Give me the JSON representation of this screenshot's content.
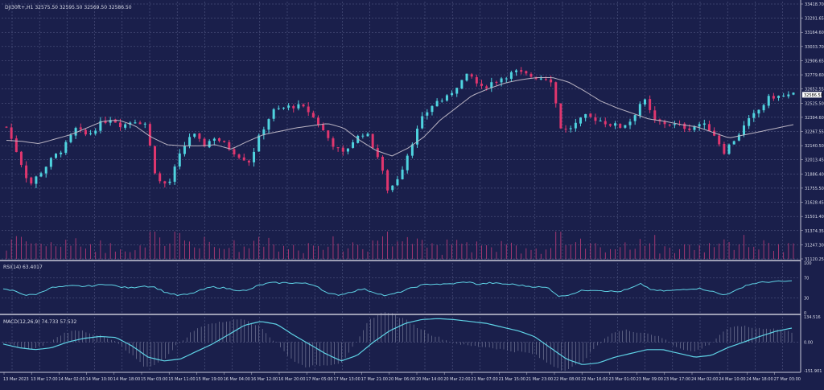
{
  "colors": {
    "background": "#1a1f4b",
    "grid": "#7a80aa",
    "up_candle": "#4fd3df",
    "down_candle": "#e0366e",
    "moving_average": "#b9b3c2",
    "volume": "#c23d7b",
    "rsi_line": "#5fd3e6",
    "macd_line": "#5fd3e6",
    "macd_histogram": "#9a9fb8",
    "text": "#d9dbe8",
    "separator": "#c8c8d8",
    "price_marker_bg": "#ffffff"
  },
  "main_panel": {
    "header": "DJI30ft+,H1  32575.50 32595.50 32569.50 32586.50",
    "price_ticks": [
      "33418.70",
      "33291.65",
      "33164.60",
      "33033.70",
      "32906.65",
      "32779.60",
      "32652.55",
      "32525.50",
      "32394.60",
      "32267.55",
      "32140.50",
      "32013.45",
      "31886.40",
      "31755.50",
      "31628.45",
      "31501.40",
      "31374.35",
      "31247.30",
      "31120.25"
    ],
    "current_price_label": "32586.50"
  },
  "rsi_panel": {
    "header": "RSI(14) 63.4017",
    "ticks": [
      "100",
      "70",
      "30",
      "0"
    ]
  },
  "macd_panel": {
    "header": "MACD(12,26,9) 74.733 57.532",
    "ticks": [
      "134.516",
      "0.00",
      "-151.901"
    ]
  },
  "time_axis": [
    "13 Mar 2023",
    "13 Mar 17:00",
    "14 Mar 02:00",
    "14 Mar 10:00",
    "14 Mar 18:00",
    "15 Mar 03:00",
    "15 Mar 11:00",
    "15 Mar 19:00",
    "16 Mar 04:00",
    "16 Mar 12:00",
    "16 Mar 20:00",
    "17 Mar 05:00",
    "17 Mar 13:00",
    "17 Mar 21:00",
    "20 Mar 06:00",
    "20 Mar 14:00",
    "20 Mar 22:00",
    "21 Mar 07:00",
    "21 Mar 15:00",
    "21 Mar 23:00",
    "22 Mar 08:00",
    "22 Mar 16:00",
    "23 Mar 01:00",
    "23 Mar 09:00",
    "23 Mar 17:00",
    "24 Mar 02:00",
    "24 Mar 10:00",
    "24 Mar 18:00",
    "27 Mar 03:00"
  ],
  "chart_data": [
    {
      "type": "candlestick",
      "title": "DJI30ft+,H1",
      "series": [
        {
          "name": "price",
          "close_anchors": [
            32300,
            32050,
            31780,
            31900,
            32020,
            32120,
            32280,
            32220,
            32320,
            32380,
            32310,
            32360,
            32330,
            31820,
            31780,
            32050,
            32250,
            32130,
            32210,
            32130,
            32050,
            31990,
            32250,
            32440,
            32470,
            32490,
            32450,
            32320,
            32170,
            32050,
            32180,
            32260,
            32060,
            31720,
            31880,
            32150,
            32390,
            32520,
            32550,
            32680,
            32770,
            32640,
            32700,
            32750,
            32790,
            32760,
            32740,
            32740,
            32250,
            32310,
            32390,
            32370,
            32330,
            32300,
            32360,
            32560,
            32350,
            32330,
            32310,
            32290,
            32330,
            32260,
            32080,
            32200,
            32340,
            32450,
            32570,
            32570,
            32586.5
          ]
        },
        {
          "name": "moving average",
          "anchors": [
            32180,
            32170,
            32150,
            32190,
            32230,
            32290,
            32350,
            32360,
            32310,
            32210,
            32140,
            32130,
            32130,
            32140,
            32100,
            32170,
            32230,
            32260,
            32290,
            32310,
            32330,
            32290,
            32180,
            32090,
            32040,
            32110,
            32210,
            32360,
            32470,
            32580,
            32640,
            32690,
            32720,
            32740,
            32740,
            32700,
            32620,
            32530,
            32470,
            32420,
            32370,
            32350,
            32320,
            32300,
            32250,
            32200,
            32230,
            32260,
            32290,
            32320
          ]
        },
        {
          "name": "volume",
          "values_scale": "relative"
        }
      ],
      "ylim": [
        31120.25,
        33418.7
      ],
      "grid": true
    },
    {
      "type": "line",
      "title": "RSI(14) 63.4017",
      "series": [
        {
          "name": "RSI(14)",
          "values": [
            47,
            44,
            35,
            38,
            50,
            52,
            54,
            53,
            55,
            58,
            52,
            50,
            54,
            52,
            41,
            35,
            37,
            45,
            52,
            50,
            46,
            44,
            55,
            60,
            60,
            60,
            59,
            55,
            38,
            36,
            42,
            48,
            41,
            34,
            40,
            48,
            55,
            58,
            57,
            59,
            62,
            57,
            60,
            58,
            57,
            54,
            52,
            50,
            32,
            38,
            45,
            46,
            44,
            42,
            48,
            58,
            45,
            44,
            45,
            48,
            49,
            44,
            36,
            42,
            55,
            60,
            62,
            63,
            63.4
          ]
        }
      ],
      "ylim": [
        0,
        100
      ]
    },
    {
      "type": "line",
      "title": "MACD(12,26,9) 74.733 57.532",
      "series": [
        {
          "name": "MACD(12,26,9)",
          "values": [
            -10,
            -30,
            -40,
            -30,
            0,
            20,
            30,
            25,
            -20,
            -80,
            -100,
            -90,
            -50,
            -10,
            40,
            90,
            110,
            95,
            40,
            -10,
            -60,
            -100,
            -70,
            0,
            60,
            100,
            120,
            125,
            120,
            110,
            100,
            80,
            60,
            30,
            -30,
            -90,
            -120,
            -110,
            -80,
            -60,
            -40,
            -40,
            -60,
            -80,
            -70,
            -30,
            0,
            30,
            57.5,
            74.7
          ]
        }
      ],
      "ylim": [
        -151.901,
        134.516
      ]
    }
  ]
}
